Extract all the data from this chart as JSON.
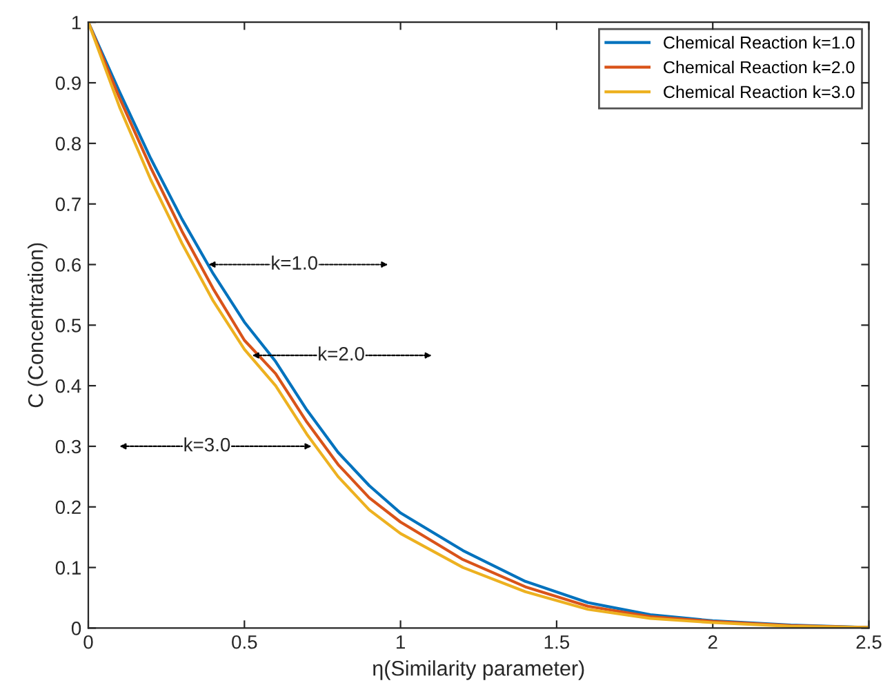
{
  "chart_data": {
    "type": "line",
    "xlabel": "η(Similarity parameter)",
    "ylabel": "C (Concentration)",
    "x": [
      0,
      0.1,
      0.2,
      0.3,
      0.4,
      0.5,
      0.6,
      0.7,
      0.8,
      0.9,
      1.0,
      1.2,
      1.4,
      1.6,
      1.8,
      2.0,
      2.25,
      2.5
    ],
    "series": [
      {
        "name": "Chemical Reaction k=1.0",
        "color": "#0072bd",
        "values": [
          1,
          0.885,
          0.775,
          0.675,
          0.585,
          0.505,
          0.44,
          0.36,
          0.29,
          0.235,
          0.19,
          0.128,
          0.077,
          0.042,
          0.022,
          0.012,
          0.005,
          0.001
        ]
      },
      {
        "name": "Chemical Reaction k=2.0",
        "color": "#d95319",
        "values": [
          1,
          0.875,
          0.76,
          0.655,
          0.56,
          0.475,
          0.42,
          0.34,
          0.27,
          0.215,
          0.175,
          0.113,
          0.068,
          0.036,
          0.019,
          0.011,
          0.004,
          0.001
        ]
      },
      {
        "name": "Chemical Reaction k=3.0",
        "color": "#edb120",
        "values": [
          1,
          0.86,
          0.74,
          0.635,
          0.54,
          0.46,
          0.4,
          0.32,
          0.25,
          0.195,
          0.156,
          0.1,
          0.06,
          0.031,
          0.016,
          0.009,
          0.003,
          0.001
        ]
      }
    ],
    "annotations": [
      {
        "text": "k=1.0",
        "x": 0.66,
        "y": 0.6
      },
      {
        "text": "k=2.0",
        "x": 0.81,
        "y": 0.45
      },
      {
        "text": "k=3.0",
        "x": 0.38,
        "y": 0.3
      }
    ],
    "xlim": [
      0,
      2.5
    ],
    "ylim": [
      0,
      1
    ],
    "xticks": [
      0,
      0.5,
      1,
      1.5,
      2,
      2.5
    ],
    "yticks": [
      0,
      0.1,
      0.2,
      0.3,
      0.4,
      0.5,
      0.6,
      0.7,
      0.8,
      0.9,
      1
    ],
    "legend": "top right",
    "grid": false,
    "line_style": "solid",
    "marker": "none"
  }
}
